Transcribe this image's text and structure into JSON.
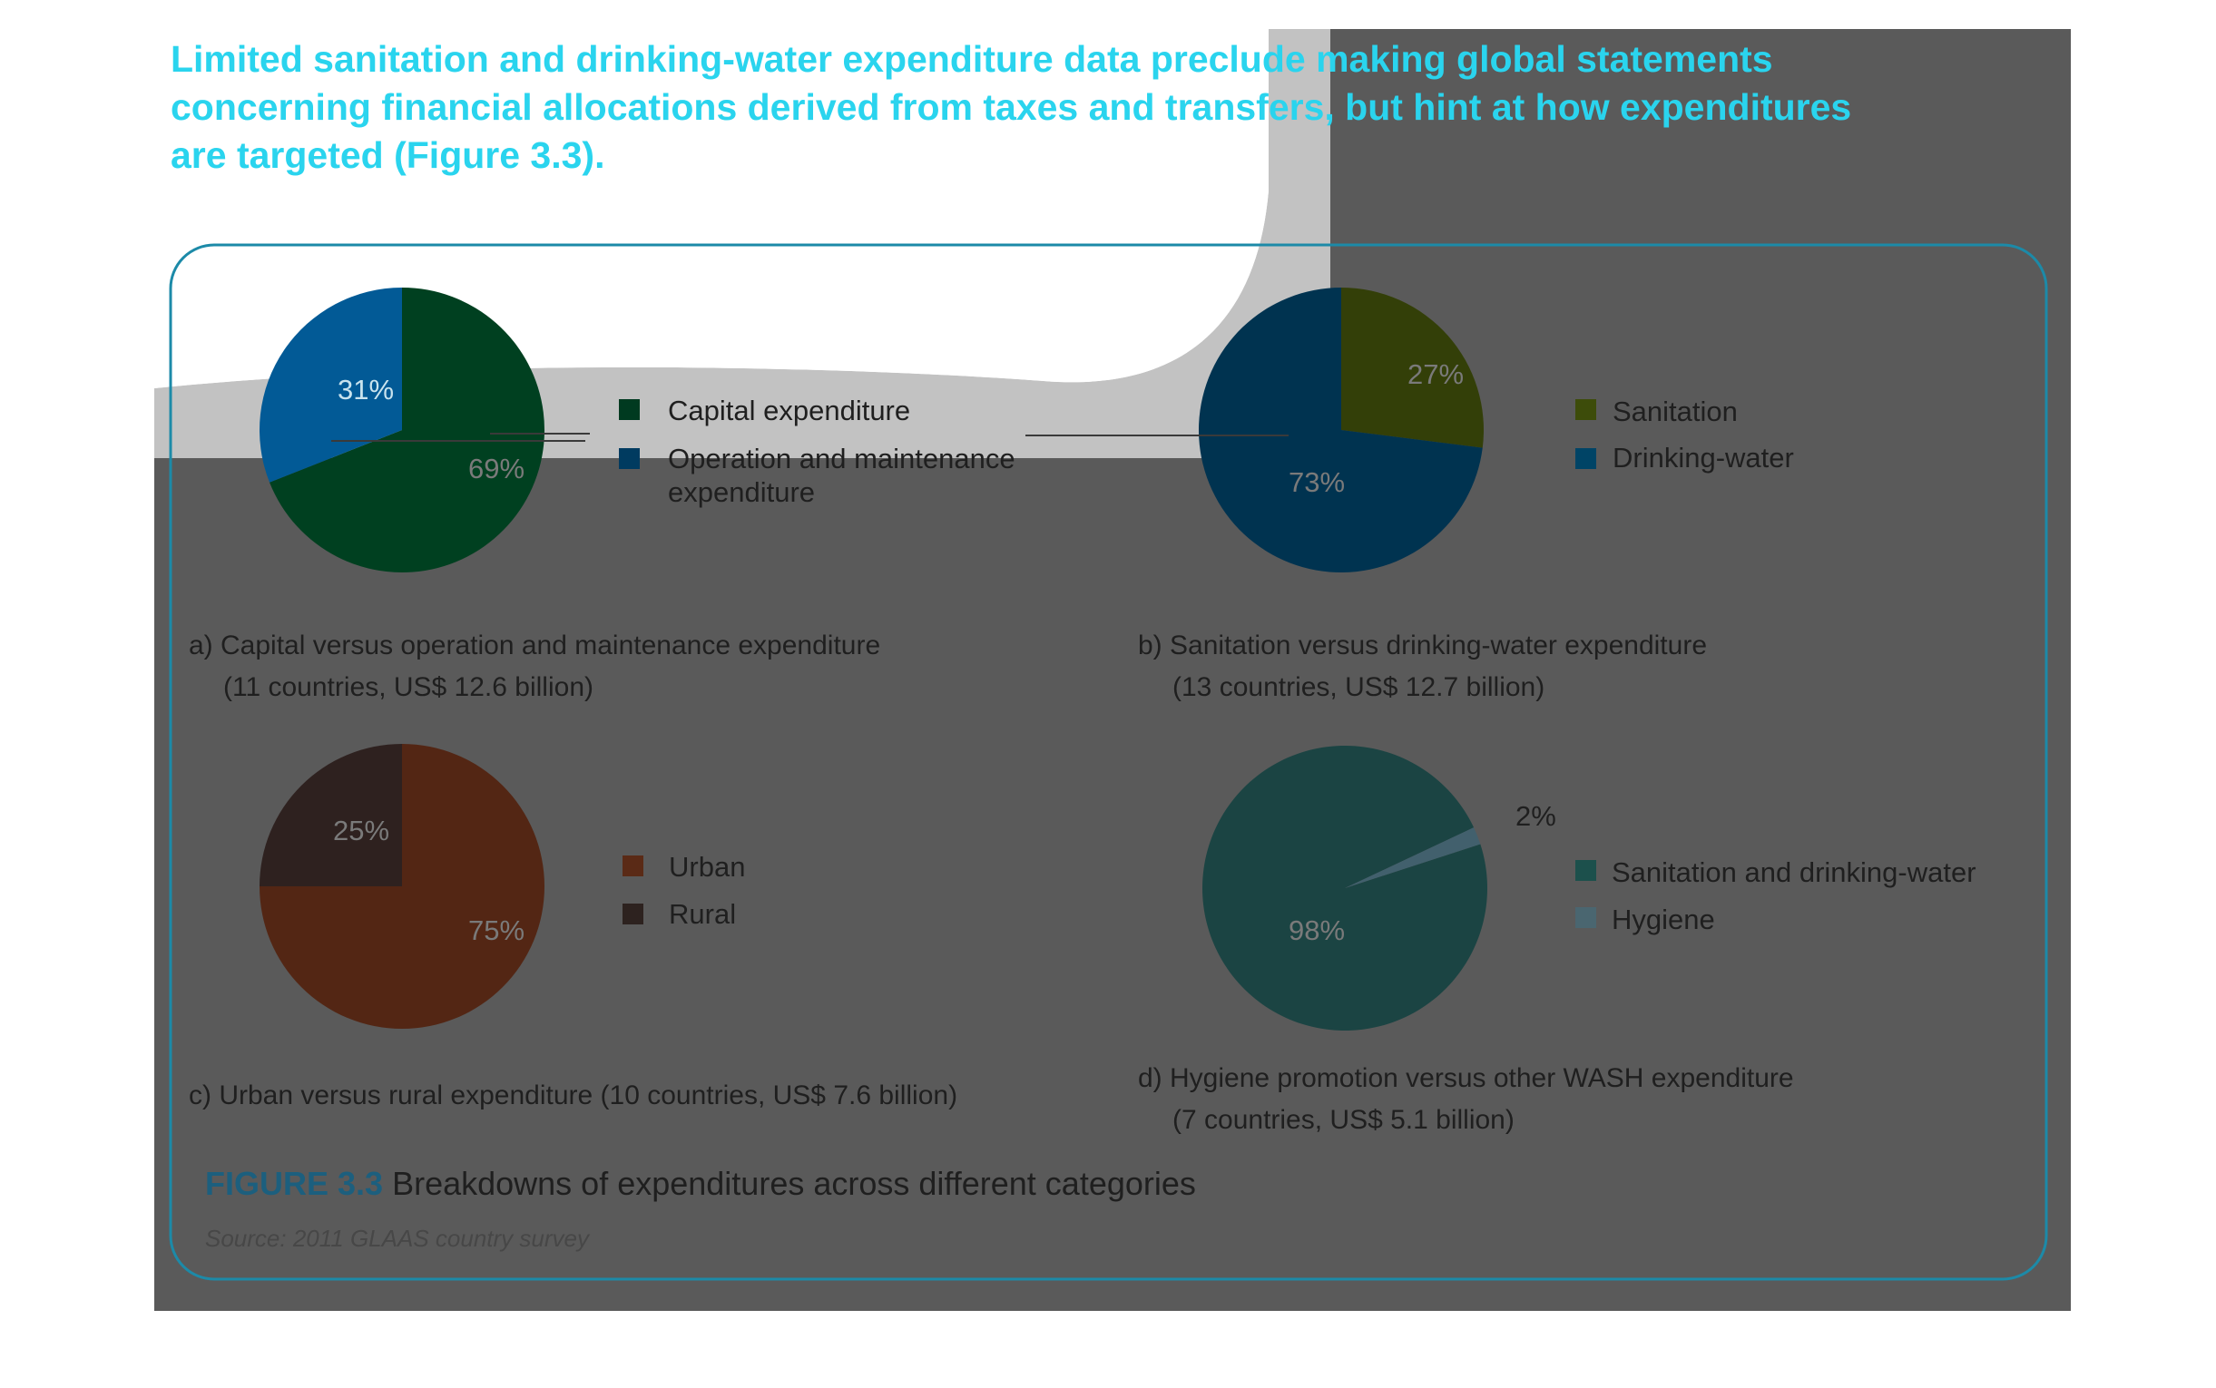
{
  "heading": {
    "lines": [
      "Limited sanitation and drinking-water expenditure data preclude making global statements",
      "concerning financial allocations derived from taxes and transfers, but hint at how expenditures",
      "are targeted (Figure 3.3)."
    ],
    "color": "#2ad4ee"
  },
  "colors": {
    "dim_overlay": "#5a5a5a",
    "spotlight_gray": "#c2c2c2",
    "frame_stroke": "#1c8aa8",
    "label_text": "#1f1f1f",
    "figure_number": "#1c5f7e",
    "source_text": "#474747",
    "pct_text": "#7a7a7a"
  },
  "figure": {
    "number": "FIGURE 3.3",
    "title": "Breakdowns of expenditures across different categories",
    "source": "Source: 2011 GLAAS country survey"
  },
  "chart_data": [
    {
      "type": "pie",
      "caption": [
        "a) Capital versus operation and maintenance expenditure",
        "(11 countries, US$ 12.6 billion)"
      ],
      "categories": [
        "Capital expenditure",
        "Operation and maintenance expenditure"
      ],
      "legend_lines": [
        [
          "Capital expenditure"
        ],
        [
          "Operation and maintenance",
          "expenditure"
        ]
      ],
      "values": [
        69,
        31
      ],
      "labels": [
        "69%",
        "31%"
      ],
      "colors": [
        "#004020",
        "#025a96"
      ],
      "legend_colors": [
        "#003a20",
        "#003b60"
      ]
    },
    {
      "type": "pie",
      "caption": [
        "b) Sanitation versus drinking-water expenditure",
        "(13 countries, US$ 12.7 billion)"
      ],
      "categories": [
        "Sanitation",
        "Drinking-water"
      ],
      "legend_lines": [
        [
          "Sanitation"
        ],
        [
          "Drinking-water"
        ]
      ],
      "values": [
        27,
        73
      ],
      "labels": [
        "27%",
        "73%"
      ],
      "colors": [
        "#333f08",
        "#003350"
      ],
      "legend_colors": [
        "#3d4c0a",
        "#004466"
      ]
    },
    {
      "type": "pie",
      "caption": [
        "c) Urban versus rural expenditure (10 countries, US$ 7.6 billion)"
      ],
      "categories": [
        "Urban",
        "Rural"
      ],
      "legend_lines": [
        [
          "Urban"
        ],
        [
          "Rural"
        ]
      ],
      "values": [
        75,
        25
      ],
      "labels": [
        "75%",
        "25%"
      ],
      "colors": [
        "#532614",
        "#2e211f"
      ],
      "legend_colors": [
        "#5a2a16",
        "#2d221f"
      ]
    },
    {
      "type": "pie",
      "caption": [
        "d) Hygiene promotion versus other WASH expenditure",
        "(7 countries, US$ 5.1 billion)"
      ],
      "categories": [
        "Sanitation and drinking-water",
        "Hygiene"
      ],
      "legend_lines": [
        [
          "Sanitation and drinking-water"
        ],
        [
          "Hygiene"
        ]
      ],
      "values": [
        98,
        2
      ],
      "labels": [
        "98%",
        "2%"
      ],
      "colors": [
        "#1b4443",
        "#42606d"
      ],
      "legend_colors": [
        "#1c504c",
        "#4a6670"
      ]
    }
  ]
}
